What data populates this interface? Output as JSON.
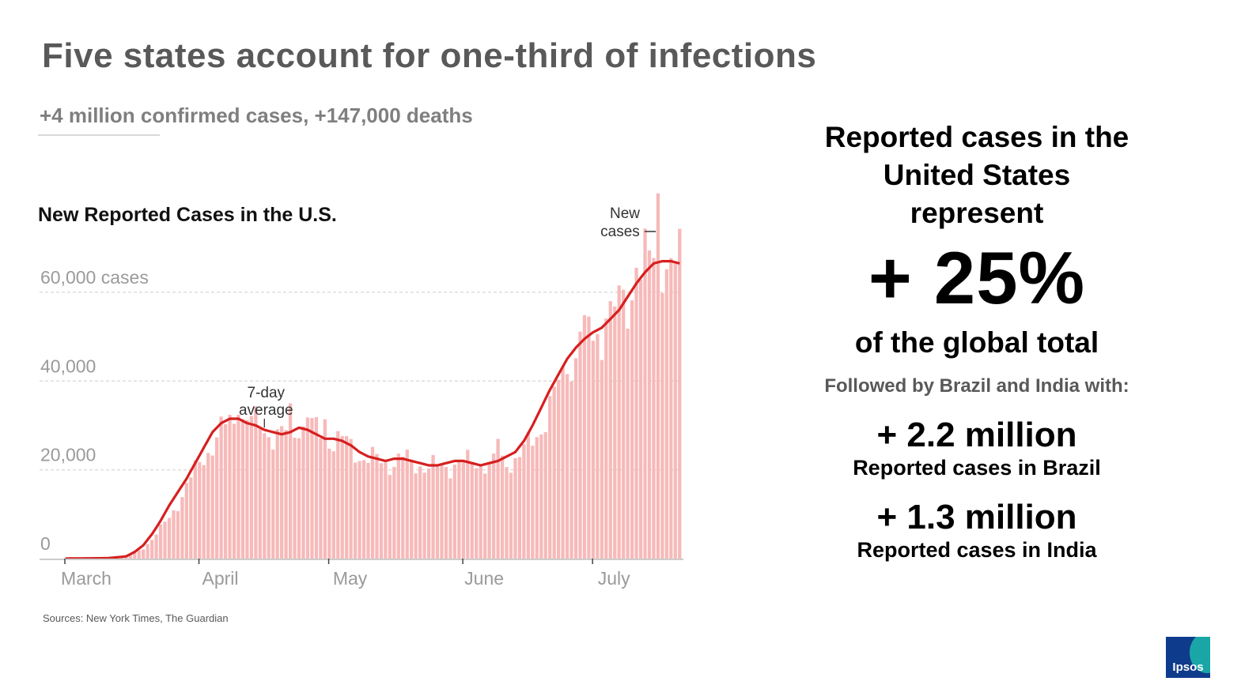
{
  "slide": {
    "title": "Five states account for one-third of infections",
    "subtitle": "+4 million confirmed cases, +147,000 deaths",
    "source": "Sources: New York Times, The Guardian"
  },
  "right_panel": {
    "heading_lines": [
      "Reported cases in the",
      "United States",
      "represent"
    ],
    "big_value": "+ 25%",
    "big_caption": "of the global total",
    "followed_by": "Followed by Brazil and India with:",
    "stats": [
      {
        "value": "+ 2.2 million",
        "label": "Reported cases in Brazil"
      },
      {
        "value": "+ 1.3 million",
        "label": "Reported cases in India"
      }
    ]
  },
  "logo": {
    "text": "Ipsos"
  },
  "colors": {
    "bar": "#f7b9b9",
    "line": "#d61f1f",
    "title": "#595959",
    "axis_text": "#9a9a9a",
    "logo_bg": "#0f3b8c",
    "logo_accent": "#1aa6a6"
  },
  "chart_data": {
    "type": "bar",
    "title": "New Reported Cases in the U.S.",
    "x_tick_labels": [
      "March",
      "April",
      "May",
      "June",
      "July"
    ],
    "y_tick_labels": [
      "0",
      "20,000",
      "40,000",
      "60,000 cases"
    ],
    "y_ticks": [
      0,
      20000,
      40000,
      60000
    ],
    "ylim": [
      0,
      76000
    ],
    "start": "2020-03-01",
    "days": 143,
    "month_start_index": {
      "March": 0,
      "April": 31,
      "May": 61,
      "June": 92,
      "July": 122
    },
    "annotations": [
      {
        "text_lines": [
          "7-day",
          "average"
        ],
        "target": "seven_day_average",
        "day": 46
      },
      {
        "text_lines": [
          "New",
          "cases"
        ],
        "target": "daily_new_cases",
        "day": 137
      }
    ],
    "series": [
      {
        "name": "New cases",
        "style": "bars",
        "anchors": [
          [
            0,
            0
          ],
          [
            10,
            50
          ],
          [
            13,
            300
          ],
          [
            15,
            700
          ],
          [
            18,
            2300
          ],
          [
            20,
            4500
          ],
          [
            22,
            6800
          ],
          [
            24,
            9000
          ],
          [
            26,
            12500
          ],
          [
            28,
            16500
          ],
          [
            30,
            19500
          ],
          [
            32,
            23000
          ],
          [
            34,
            26000
          ],
          [
            36,
            28500
          ],
          [
            38,
            30500
          ],
          [
            40,
            32000
          ],
          [
            42,
            31500
          ],
          [
            44,
            30000
          ],
          [
            46,
            29500
          ],
          [
            48,
            28000
          ],
          [
            50,
            27500
          ],
          [
            52,
            28500
          ],
          [
            54,
            30500
          ],
          [
            56,
            29500
          ],
          [
            58,
            28500
          ],
          [
            60,
            27500
          ],
          [
            62,
            27000
          ],
          [
            64,
            26500
          ],
          [
            66,
            25000
          ],
          [
            68,
            23500
          ],
          [
            70,
            22500
          ],
          [
            72,
            22000
          ],
          [
            74,
            21500
          ],
          [
            76,
            22000
          ],
          [
            78,
            22500
          ],
          [
            80,
            21500
          ],
          [
            82,
            21500
          ],
          [
            84,
            20500
          ],
          [
            86,
            20500
          ],
          [
            88,
            21000
          ],
          [
            90,
            21500
          ],
          [
            92,
            21000
          ],
          [
            94,
            22000
          ],
          [
            96,
            22000
          ],
          [
            98,
            21000
          ],
          [
            100,
            21500
          ],
          [
            102,
            22000
          ],
          [
            104,
            22500
          ],
          [
            106,
            24000
          ],
          [
            108,
            26500
          ],
          [
            110,
            30000
          ],
          [
            112,
            34000
          ],
          [
            114,
            38500
          ],
          [
            116,
            42000
          ],
          [
            118,
            45500
          ],
          [
            120,
            49000
          ],
          [
            122,
            51000
          ],
          [
            124,
            50500
          ],
          [
            126,
            53500
          ],
          [
            128,
            56500
          ],
          [
            130,
            59000
          ],
          [
            132,
            63000
          ],
          [
            134,
            65000
          ],
          [
            136,
            68000
          ],
          [
            137,
            75000
          ],
          [
            138,
            70000
          ],
          [
            140,
            64000
          ],
          [
            142,
            66000
          ]
        ],
        "spikes": {
          "40": 5000,
          "52": 4000,
          "56": 3500,
          "60": 4000,
          "100": 5000,
          "116": 4000,
          "119": 5500,
          "125": 6000,
          "132": 5500,
          "137": 8000
        }
      },
      {
        "name": "7-day average",
        "style": "line",
        "anchors": [
          [
            0,
            0
          ],
          [
            10,
            100
          ],
          [
            14,
            500
          ],
          [
            16,
            1500
          ],
          [
            18,
            3000
          ],
          [
            20,
            5500
          ],
          [
            22,
            8500
          ],
          [
            24,
            12000
          ],
          [
            26,
            15000
          ],
          [
            28,
            18000
          ],
          [
            30,
            21500
          ],
          [
            32,
            25000
          ],
          [
            34,
            28500
          ],
          [
            36,
            30500
          ],
          [
            38,
            31500
          ],
          [
            40,
            31500
          ],
          [
            42,
            30500
          ],
          [
            44,
            30000
          ],
          [
            46,
            29000
          ],
          [
            48,
            28500
          ],
          [
            50,
            28000
          ],
          [
            52,
            28500
          ],
          [
            54,
            29500
          ],
          [
            56,
            29000
          ],
          [
            58,
            28000
          ],
          [
            60,
            27000
          ],
          [
            62,
            27000
          ],
          [
            64,
            26500
          ],
          [
            66,
            25500
          ],
          [
            68,
            24000
          ],
          [
            70,
            23000
          ],
          [
            72,
            22500
          ],
          [
            74,
            22000
          ],
          [
            76,
            22500
          ],
          [
            78,
            22500
          ],
          [
            80,
            22000
          ],
          [
            82,
            21500
          ],
          [
            84,
            21000
          ],
          [
            86,
            21000
          ],
          [
            88,
            21500
          ],
          [
            90,
            22000
          ],
          [
            92,
            22000
          ],
          [
            94,
            21500
          ],
          [
            96,
            21000
          ],
          [
            98,
            21500
          ],
          [
            100,
            22000
          ],
          [
            102,
            23000
          ],
          [
            104,
            24000
          ],
          [
            106,
            26500
          ],
          [
            108,
            30000
          ],
          [
            110,
            34000
          ],
          [
            112,
            38000
          ],
          [
            114,
            41500
          ],
          [
            116,
            45000
          ],
          [
            118,
            47500
          ],
          [
            120,
            49500
          ],
          [
            122,
            51000
          ],
          [
            124,
            52000
          ],
          [
            126,
            54000
          ],
          [
            128,
            56000
          ],
          [
            130,
            59000
          ],
          [
            132,
            62000
          ],
          [
            134,
            64500
          ],
          [
            136,
            66500
          ],
          [
            138,
            67000
          ],
          [
            140,
            67000
          ],
          [
            142,
            66500
          ]
        ]
      }
    ]
  }
}
